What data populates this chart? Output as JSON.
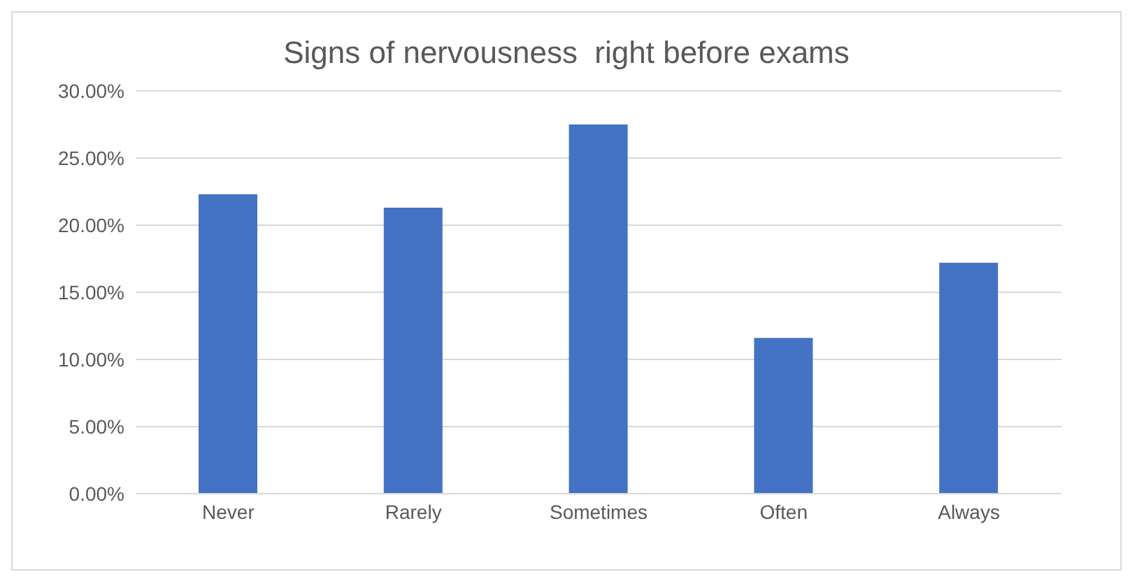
{
  "chart_data": {
    "type": "bar",
    "title": "Signs of nervousness  right before exams",
    "categories": [
      "Never",
      "Rarely",
      "Sometimes",
      "Often",
      "Always"
    ],
    "values": [
      22.3,
      21.3,
      27.5,
      11.6,
      17.2
    ],
    "color": "#4472c4",
    "ylim": [
      0,
      30
    ],
    "yticks": [
      {
        "value": 0,
        "label": "0.00%"
      },
      {
        "value": 5,
        "label": "5.00%"
      },
      {
        "value": 10,
        "label": "10.00%"
      },
      {
        "value": 15,
        "label": "15.00%"
      },
      {
        "value": 20,
        "label": "20.00%"
      },
      {
        "value": 25,
        "label": "25.00%"
      },
      {
        "value": 30,
        "label": "30.00%"
      }
    ],
    "grid": "y"
  }
}
